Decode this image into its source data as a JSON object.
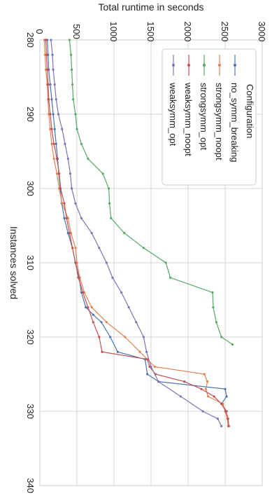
{
  "chart_data": {
    "type": "line",
    "title": "",
    "xlabel": "Instances solved",
    "ylabel": "Total runtime in seconds",
    "xlim": [
      280,
      340
    ],
    "ylim": [
      0,
      3000
    ],
    "x_ticks": [
      280,
      290,
      300,
      310,
      320,
      330,
      340
    ],
    "y_ticks": [
      0,
      500,
      1000,
      1500,
      2000,
      2500,
      3000
    ],
    "grid": true,
    "legend": {
      "title": "Configuration",
      "placement": "top-right"
    },
    "series": [
      {
        "name": "no_symm_breaking",
        "color": "#4c72b0",
        "points": [
          [
            280,
            100
          ],
          [
            282,
            110
          ],
          [
            284,
            120
          ],
          [
            286,
            140
          ],
          [
            288,
            160
          ],
          [
            290,
            180
          ],
          [
            292,
            200
          ],
          [
            294,
            220
          ],
          [
            296,
            240
          ],
          [
            298,
            255
          ],
          [
            300,
            275
          ],
          [
            302,
            295
          ],
          [
            304,
            330
          ],
          [
            306,
            380
          ],
          [
            308,
            440
          ],
          [
            310,
            480
          ],
          [
            312,
            530
          ],
          [
            314,
            560
          ],
          [
            316,
            620
          ],
          [
            317,
            720
          ],
          [
            318,
            830
          ],
          [
            320,
            950
          ],
          [
            322,
            1050
          ],
          [
            323,
            1420
          ],
          [
            325,
            1450
          ],
          [
            326,
            1600
          ],
          [
            327,
            2500
          ],
          [
            328,
            2520
          ],
          [
            329,
            2450
          ],
          [
            330,
            2520
          ]
        ]
      },
      {
        "name": "strongsymm_noopt",
        "color": "#dd8452",
        "points": [
          [
            280,
            60
          ],
          [
            282,
            70
          ],
          [
            284,
            80
          ],
          [
            286,
            100
          ],
          [
            288,
            110
          ],
          [
            290,
            120
          ],
          [
            292,
            140
          ],
          [
            294,
            160
          ],
          [
            296,
            190
          ],
          [
            298,
            230
          ],
          [
            300,
            260
          ],
          [
            302,
            300
          ],
          [
            304,
            380
          ],
          [
            306,
            420
          ],
          [
            308,
            480
          ],
          [
            310,
            500
          ],
          [
            312,
            540
          ],
          [
            314,
            600
          ],
          [
            316,
            700
          ],
          [
            318,
            900
          ],
          [
            320,
            1150
          ],
          [
            322,
            1350
          ],
          [
            324,
            1550
          ],
          [
            325,
            2220
          ],
          [
            326,
            2260
          ],
          [
            327,
            2240
          ],
          [
            328,
            2270
          ],
          [
            329,
            2470
          ],
          [
            330,
            2500
          ],
          [
            331,
            2530
          ],
          [
            332,
            2540
          ]
        ]
      },
      {
        "name": "strongsymm_opt",
        "color": "#55a868",
        "points": [
          [
            280,
            400
          ],
          [
            282,
            420
          ],
          [
            284,
            430
          ],
          [
            286,
            440
          ],
          [
            288,
            450
          ],
          [
            290,
            480
          ],
          [
            292,
            500
          ],
          [
            294,
            560
          ],
          [
            296,
            650
          ],
          [
            298,
            850
          ],
          [
            300,
            930
          ],
          [
            302,
            940
          ],
          [
            304,
            960
          ],
          [
            306,
            1140
          ],
          [
            308,
            1400
          ],
          [
            310,
            1700
          ],
          [
            312,
            1760
          ],
          [
            314,
            2330
          ],
          [
            316,
            2340
          ],
          [
            318,
            2380
          ],
          [
            320,
            2450
          ],
          [
            321,
            2600
          ]
        ]
      },
      {
        "name": "weaksymm_noopt",
        "color": "#c44e52",
        "points": [
          [
            280,
            80
          ],
          [
            282,
            90
          ],
          [
            284,
            100
          ],
          [
            286,
            110
          ],
          [
            288,
            120
          ],
          [
            290,
            140
          ],
          [
            292,
            160
          ],
          [
            294,
            190
          ],
          [
            296,
            230
          ],
          [
            298,
            260
          ],
          [
            300,
            280
          ],
          [
            302,
            330
          ],
          [
            304,
            360
          ],
          [
            306,
            400
          ],
          [
            308,
            440
          ],
          [
            310,
            480
          ],
          [
            312,
            520
          ],
          [
            314,
            580
          ],
          [
            316,
            650
          ],
          [
            318,
            720
          ],
          [
            320,
            800
          ],
          [
            322,
            840
          ],
          [
            323,
            1450
          ],
          [
            324,
            1480
          ],
          [
            325,
            1560
          ],
          [
            326,
            1950
          ],
          [
            327,
            2180
          ],
          [
            328,
            2350
          ],
          [
            329,
            2450
          ],
          [
            330,
            2510
          ],
          [
            331,
            2540
          ],
          [
            332,
            2550
          ]
        ]
      },
      {
        "name": "weaksymm_opt",
        "color": "#8172b3",
        "points": [
          [
            280,
            150
          ],
          [
            282,
            170
          ],
          [
            284,
            180
          ],
          [
            286,
            200
          ],
          [
            288,
            220
          ],
          [
            290,
            250
          ],
          [
            292,
            300
          ],
          [
            294,
            340
          ],
          [
            296,
            380
          ],
          [
            298,
            410
          ],
          [
            300,
            430
          ],
          [
            302,
            480
          ],
          [
            304,
            560
          ],
          [
            306,
            700
          ],
          [
            308,
            800
          ],
          [
            310,
            900
          ],
          [
            312,
            980
          ],
          [
            314,
            1100
          ],
          [
            316,
            1200
          ],
          [
            318,
            1300
          ],
          [
            320,
            1400
          ],
          [
            322,
            1440
          ],
          [
            324,
            1500
          ],
          [
            326,
            1600
          ],
          [
            328,
            1900
          ],
          [
            330,
            2200
          ],
          [
            331,
            2400
          ],
          [
            332,
            2450
          ]
        ]
      }
    ]
  }
}
